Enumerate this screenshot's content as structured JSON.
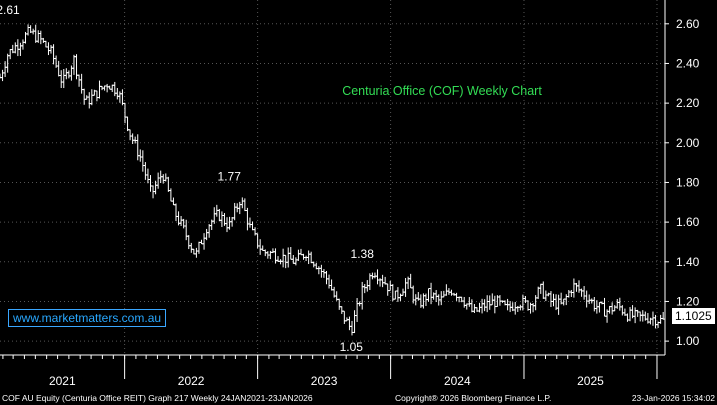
{
  "chart_data": {
    "type": "line",
    "style": "ohlc-bar",
    "title": "Centuria Office (COF) Weekly Chart",
    "xlabel": "",
    "ylabel": "",
    "x_range": [
      "2021-01-24",
      "2026-01-23"
    ],
    "ylim": [
      0.93,
      2.72
    ],
    "y_ticks": [
      "1.00",
      "1.20",
      "1.40",
      "1.60",
      "1.80",
      "2.00",
      "2.20",
      "2.40",
      "2.60"
    ],
    "x_tick_labels": [
      "2021",
      "2022",
      "2023",
      "2024",
      "2025"
    ],
    "grid": true,
    "series": [
      {
        "x": [
          "2021-01",
          "2021-02",
          "2021-03",
          "2021-04",
          "2021-05",
          "2021-06",
          "2021-07",
          "2021-08",
          "2021-09",
          "2021-10",
          "2021-11",
          "2021-12",
          "2022-01",
          "2022-02",
          "2022-03",
          "2022-04",
          "2022-05",
          "2022-06",
          "2022-07",
          "2022-08",
          "2022-09",
          "2022-10",
          "2022-11",
          "2022-12",
          "2023-01",
          "2023-02",
          "2023-03",
          "2023-04",
          "2023-05",
          "2023-06",
          "2023-07",
          "2023-08",
          "2023-09",
          "2023-10",
          "2023-11",
          "2023-12",
          "2024-01",
          "2024-02",
          "2024-03",
          "2024-04",
          "2024-05",
          "2024-06",
          "2024-07",
          "2024-08",
          "2024-09",
          "2024-10",
          "2024-11",
          "2024-12",
          "2025-01",
          "2025-02",
          "2025-03",
          "2025-04",
          "2025-05",
          "2025-06",
          "2025-07",
          "2025-08",
          "2025-09",
          "2025-10",
          "2025-11",
          "2025-12",
          "2026-01"
        ],
        "y": [
          2.28,
          2.45,
          2.5,
          2.56,
          2.52,
          2.45,
          2.3,
          2.42,
          2.2,
          2.25,
          2.3,
          2.26,
          2.05,
          1.92,
          1.74,
          1.85,
          1.66,
          1.55,
          1.43,
          1.58,
          1.64,
          1.58,
          1.72,
          1.55,
          1.45,
          1.44,
          1.42,
          1.4,
          1.45,
          1.38,
          1.3,
          1.15,
          1.06,
          1.25,
          1.36,
          1.3,
          1.22,
          1.3,
          1.18,
          1.24,
          1.2,
          1.26,
          1.22,
          1.14,
          1.18,
          1.2,
          1.16,
          1.2,
          1.18,
          1.26,
          1.2,
          1.18,
          1.28,
          1.24,
          1.18,
          1.15,
          1.18,
          1.13,
          1.12,
          1.12,
          1.1025
        ]
      }
    ],
    "annotations": [
      {
        "label": "2.61",
        "x": "2021-02",
        "y": 2.61
      },
      {
        "label": "1.77",
        "x": "2022-10",
        "y": 1.77
      },
      {
        "label": "1.38",
        "x": "2023-10",
        "y": 1.38
      },
      {
        "label": "1.05",
        "x": "2023-09",
        "y": 1.05
      }
    ],
    "last_price": "1.1025"
  },
  "colors": {
    "background": "#000000",
    "price": "#ffffff",
    "title": "#33dd55",
    "badge": "#29a8ff",
    "grid": "#555555"
  },
  "badge_text": "www.marketmatters.com.au",
  "footer": {
    "left": "COF AU Equity (Centuria Office REIT) Graph 217 Weekly 24JAN2021-23JAN2026",
    "center": "Copyright® 2026 Bloomberg Finance L.P.",
    "right": "23-Jan-2026 15:34:02"
  }
}
